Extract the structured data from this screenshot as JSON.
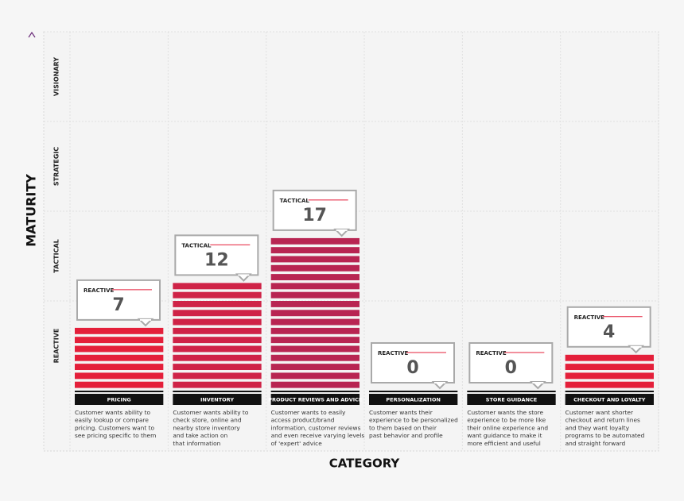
{
  "chart_data": {
    "type": "bar",
    "y_title": "MATURITY",
    "x_title": "CATEGORY",
    "levels": [
      "REACTIVE",
      "TACTICAL",
      "STRATEGIC",
      "VISIONARY"
    ],
    "ylim": [
      0,
      40
    ],
    "categories": [
      "PRICING",
      "INVENTORY",
      "PRODUCT REVIEWS AND ADVICE",
      "PERSONALIZATION",
      "STORE GUIDANCE",
      "CHECKOUT AND LOYALTY"
    ],
    "values": [
      7,
      12,
      17,
      0,
      0,
      4
    ],
    "callout_labels": [
      "REACTIVE",
      "TACTICAL",
      "TACTICAL",
      "REACTIVE",
      "REACTIVE",
      "REACTIVE"
    ],
    "colors": [
      "#e41f3a",
      "#cf2347",
      "#b82552",
      "#e41f3a",
      "#e41f3a",
      "#e41f3a"
    ],
    "descriptions": [
      [
        "Customer wants ability to",
        "easily lookup or compare",
        "pricing. Customers want to",
        "see pricing specific to them"
      ],
      [
        "Customer wants ability to",
        "check store, online and",
        "nearby store inventory",
        "and take action on",
        "that information"
      ],
      [
        "Customer wants to easily",
        "access product/brand",
        "information, customer reviews",
        "and even receive varying levels",
        "of 'expert' advice"
      ],
      [
        "Customer wants their",
        "experience to be personalized",
        "to them based on their",
        "past behavior and profile"
      ],
      [
        "Customer wants the store",
        "experience to be more like",
        "their online experience and",
        "want guidance to make it",
        "more efficient and useful"
      ],
      [
        "Customer want shorter",
        "checkout and return lines",
        "and they want loyalty",
        "programs to be automated",
        "and straight forward"
      ]
    ],
    "grid": true
  }
}
